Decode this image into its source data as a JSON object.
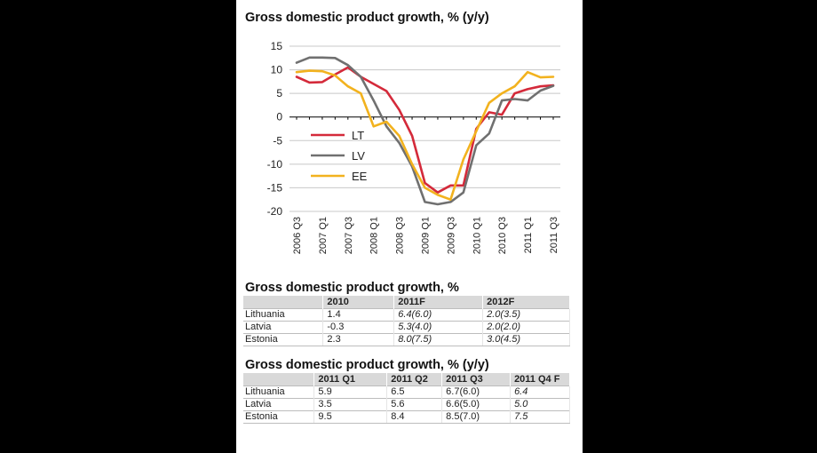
{
  "chart": {
    "title": "Gross domestic product growth, % (y/y)"
  },
  "chart_data": {
    "type": "line",
    "title": "Gross domestic product growth, % (y/y)",
    "xlabel": "",
    "ylabel": "",
    "ylim": [
      -20,
      15
    ],
    "yticks": [
      15,
      10,
      5,
      0,
      -5,
      -10,
      -15,
      -20
    ],
    "x": [
      "2006 Q3",
      "2006 Q4",
      "2007 Q1",
      "2007 Q2",
      "2007 Q3",
      "2007 Q4",
      "2008 Q1",
      "2008 Q2",
      "2008 Q3",
      "2008 Q4",
      "2009 Q1",
      "2009 Q2",
      "2009 Q3",
      "2009 Q4",
      "2010 Q1",
      "2010 Q2",
      "2010 Q3",
      "2010 Q4",
      "2011 Q1",
      "2011 Q2",
      "2011 Q3"
    ],
    "tick_labels": [
      "2006 Q3",
      "2007 Q1",
      "2007 Q3",
      "2008 Q1",
      "2008 Q3",
      "2009 Q1",
      "2009 Q3",
      "2010 Q1",
      "2010 Q3",
      "2011 Q1",
      "2011 Q3"
    ],
    "grid": "horizontal",
    "legend": "left-center",
    "series": [
      {
        "name": "LT",
        "color": "#d42a3a",
        "values": [
          8.5,
          7.3,
          7.4,
          9.0,
          10.5,
          8.5,
          7.0,
          5.5,
          1.5,
          -4.0,
          -14.0,
          -16.0,
          -14.5,
          -14.5,
          -2.5,
          1.0,
          0.5,
          5.0,
          5.9,
          6.5,
          6.7
        ]
      },
      {
        "name": "LV",
        "color": "#707070",
        "values": [
          11.5,
          12.6,
          12.6,
          12.5,
          11.0,
          8.5,
          3.5,
          -2.0,
          -5.5,
          -10.5,
          -18.0,
          -18.5,
          -18.0,
          -16.0,
          -6.0,
          -3.5,
          3.5,
          3.8,
          3.5,
          5.6,
          6.6
        ]
      },
      {
        "name": "EE",
        "color": "#f2b21e",
        "values": [
          9.5,
          9.8,
          9.7,
          8.8,
          6.5,
          5.0,
          -2.0,
          -1.0,
          -4.0,
          -10.0,
          -15.0,
          -16.5,
          -17.5,
          -9.0,
          -3.0,
          3.0,
          5.0,
          6.5,
          9.5,
          8.4,
          8.5
        ]
      }
    ]
  },
  "table1": {
    "title": "Gross domestic product growth, %",
    "headers": [
      "",
      "2010",
      "2011F",
      "2012F"
    ],
    "rows": [
      [
        "Lithuania",
        "1.4",
        "6.4(6.0)",
        "2.0(3.5)"
      ],
      [
        "Latvia",
        "-0.3",
        "5.3(4.0)",
        "2.0(2.0)"
      ],
      [
        "Estonia",
        "2.3",
        "8.0(7.5)",
        "3.0(4.5)"
      ]
    ]
  },
  "table2": {
    "title": "Gross domestic product growth, % (y/y)",
    "headers": [
      "",
      "2011 Q1",
      "2011 Q2",
      "2011 Q3",
      "2011 Q4 F"
    ],
    "rows": [
      [
        "Lithuania",
        "5.9",
        "6.5",
        "6.7(6.0)",
        "6.4"
      ],
      [
        "Latvia",
        "3.5",
        "5.6",
        "6.6(5.0)",
        "5.0"
      ],
      [
        "Estonia",
        "9.5",
        "8.4",
        "8.5(7.0)",
        "7.5"
      ]
    ]
  }
}
